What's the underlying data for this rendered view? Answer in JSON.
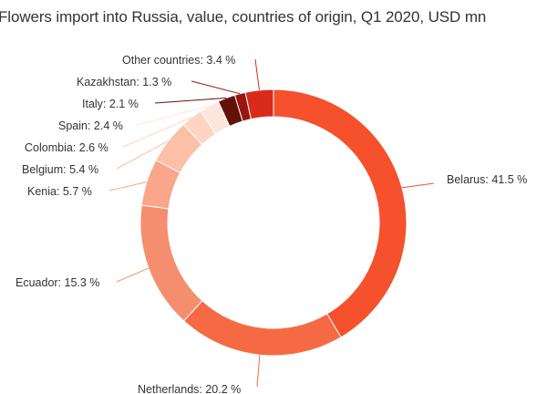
{
  "chart_data": {
    "type": "pie",
    "variant": "donut",
    "title": "Flowers import into Russia, value, countries of origin, Q1 2020, USD mn",
    "slices": [
      {
        "name": "Belarus",
        "value": 41.5,
        "label": "Belarus: 41.5 %",
        "color": "#f4512c"
      },
      {
        "name": "Netherlands",
        "value": 20.2,
        "label": "Netherlands: 20.2 %",
        "color": "#f56a44"
      },
      {
        "name": "Ecuador",
        "value": 15.3,
        "label": "Ecuador: 15.3 %",
        "color": "#f58e6e"
      },
      {
        "name": "Kenia",
        "value": 5.7,
        "label": "Kenia: 5.7 %",
        "color": "#f9a68a"
      },
      {
        "name": "Belgium",
        "value": 5.4,
        "label": "Belgium: 5.4 %",
        "color": "#fcc0a6"
      },
      {
        "name": "Colombia",
        "value": 2.6,
        "label": "Colombia: 2.6 %",
        "color": "#fdd5c2"
      },
      {
        "name": "Spain",
        "value": 2.4,
        "label": "Spain: 2.4 %",
        "color": "#fde7dc"
      },
      {
        "name": "Italy",
        "value": 2.1,
        "label": "Italy: 2.1 %",
        "color": "#64110c"
      },
      {
        "name": "Kazakhstan",
        "value": 1.3,
        "label": "Kazakhstan: 1.3 %",
        "color": "#981610"
      },
      {
        "name": "Other countries",
        "value": 3.4,
        "label": "Other countries: 3.4 %",
        "color": "#d92b1c"
      }
    ]
  }
}
